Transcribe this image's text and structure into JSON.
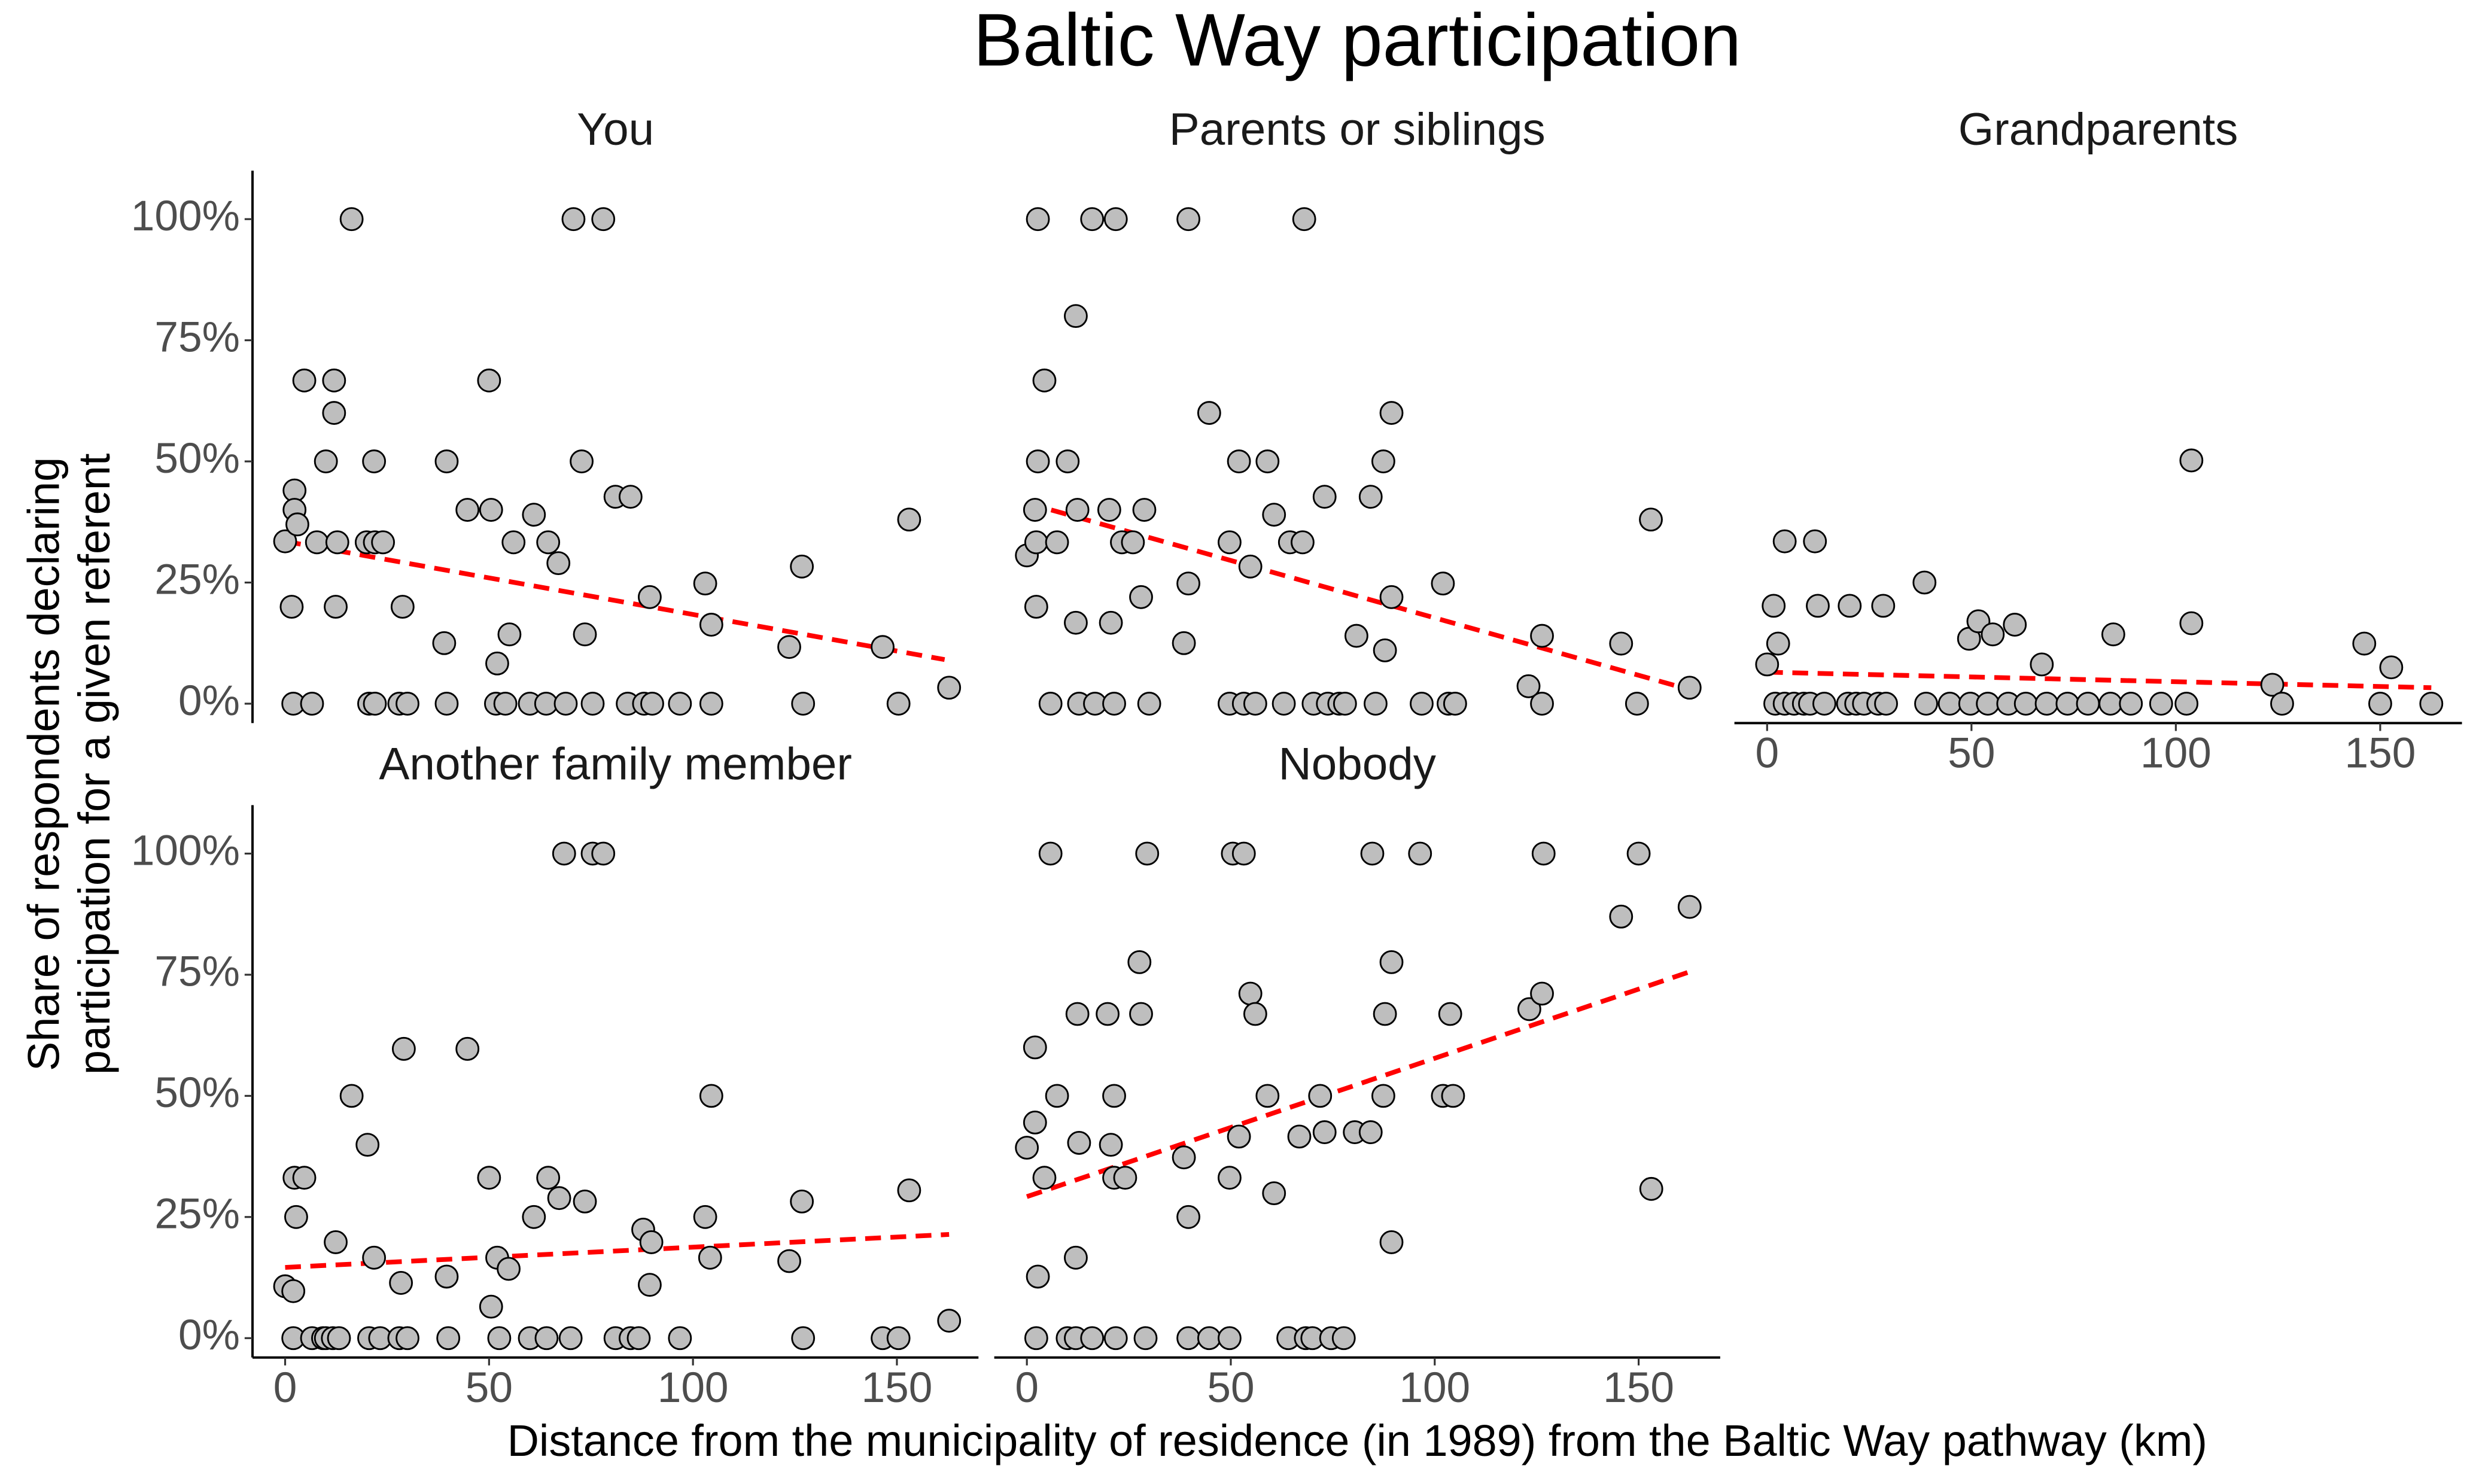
{
  "title": "Baltic Way participation",
  "x_label": "Distance from the municipality of residence (in 1989) from the Baltic Way pathway (km)",
  "y_label": [
    "Share of respondents declaring",
    "participation for a given referent"
  ],
  "chart_data": [
    {
      "type": "scatter",
      "title": "You",
      "color": "#bebebe",
      "x": [
        0,
        1.6,
        2,
        2.3,
        2.3,
        3,
        4.7,
        6.6,
        7.8,
        10,
        12,
        12,
        12.4,
        12.8,
        16.3,
        20,
        20.6,
        21.8,
        22,
        24,
        22,
        28,
        28.8,
        30,
        39.6,
        39.6,
        39,
        44.7,
        50,
        50.5,
        51.7,
        52,
        54,
        55,
        56,
        60,
        61,
        64,
        64.5,
        67,
        68.8,
        70.7,
        72.7,
        73.5,
        75.4,
        78,
        81,
        84,
        84.7,
        88,
        89.4,
        90,
        96.8,
        103,
        104.5,
        104.5,
        123.6,
        127,
        126.7,
        146.5,
        150.4,
        153,
        162.8
      ],
      "values": [
        33.5,
        20,
        0,
        44,
        40,
        37,
        66.7,
        0,
        33.3,
        50,
        66.7,
        60,
        20,
        33.3,
        100,
        33.3,
        0,
        50,
        33.3,
        33.3,
        0,
        0,
        20,
        0,
        50,
        0,
        12.5,
        40,
        66.7,
        40,
        0,
        8.3,
        0,
        14.3,
        33.3,
        0,
        39,
        0,
        33.3,
        29,
        0,
        100,
        50,
        14.3,
        0,
        100,
        42.7,
        0,
        42.7,
        0,
        22,
        0,
        0,
        24.8,
        0,
        16.3,
        11.7,
        0,
        28.3,
        11.7,
        0,
        38,
        3.3
      ],
      "trend": {
        "color": "#ff0000",
        "x": [
          0,
          161.7
        ],
        "values": [
          33.5,
          9.1
        ]
      },
      "xlim": [
        -8,
        170
      ],
      "ylim": [
        -4,
        110
      ],
      "yticks": [
        {
          "value": 0,
          "label": "0%"
        },
        {
          "value": 25,
          "label": "25%"
        },
        {
          "value": 50,
          "label": "50%"
        },
        {
          "value": 75,
          "label": "75%"
        },
        {
          "value": 100,
          "label": "100%"
        }
      ]
    },
    {
      "type": "scatter",
      "title": "Parents or siblings",
      "color": "#bebebe",
      "x": [
        0,
        2,
        2.3,
        2.7,
        2.3,
        2.7,
        4.3,
        5.8,
        7.4,
        10,
        12,
        12.4,
        12,
        12.8,
        16,
        16.7,
        20.2,
        20.6,
        21.8,
        21.4,
        23.3,
        26,
        28,
        28.8,
        30,
        38.5,
        39.6,
        39.6,
        44.7,
        49.7,
        49.7,
        52,
        53.2,
        54.8,
        56,
        59,
        60.6,
        63,
        64.5,
        67.6,
        68,
        70.3,
        73,
        73.8,
        76.6,
        78,
        80.8,
        84.3,
        85.5,
        87.4,
        87.8,
        89.4,
        89.4,
        96.8,
        102,
        103.4,
        105,
        123,
        126.3,
        126.3,
        145.7,
        149.6,
        153,
        162.5
      ],
      "values": [
        30.6,
        40,
        20,
        50,
        33.3,
        100,
        66.7,
        0,
        33.3,
        50,
        80,
        40,
        16.7,
        0,
        100,
        0,
        40,
        16.7,
        100,
        0,
        33.3,
        33.3,
        22,
        40,
        0,
        12.5,
        100,
        24.8,
        60,
        33.3,
        0,
        50,
        0,
        28.3,
        0,
        50,
        39,
        0,
        33.3,
        33.3,
        100,
        0,
        42.7,
        0,
        0,
        0,
        14,
        42.7,
        0,
        50,
        11,
        60,
        22,
        0,
        24.8,
        0,
        0,
        3.6,
        14,
        0,
        12.4,
        0,
        38,
        3.3
      ],
      "trend": {
        "color": "#ff0000",
        "x": [
          0,
          162.5
        ],
        "values": [
          41.4,
          2.9
        ]
      },
      "xlim": [
        -8,
        170
      ],
      "ylim": [
        -4,
        110
      ]
    },
    {
      "type": "scatter",
      "title": "Grandparents",
      "color": "#bebebe",
      "x": [
        0,
        1.6,
        2.7,
        2,
        4.3,
        4.3,
        6.6,
        9,
        10.5,
        11.7,
        12.4,
        14,
        20.2,
        19.8,
        21.8,
        23.7,
        27.2,
        28.4,
        29.1,
        38.5,
        38.9,
        44.7,
        49.4,
        49.7,
        51.7,
        54,
        55.2,
        59,
        60.6,
        63.3,
        67.2,
        68.4,
        73.5,
        78.5,
        84,
        84.7,
        89,
        96.4,
        102.6,
        103.8,
        103.8,
        123.6,
        126,
        146.1,
        150,
        152.7,
        162.5
      ],
      "values": [
        8.1,
        20.2,
        12.4,
        0,
        33.5,
        0,
        0,
        0,
        0,
        33.5,
        20.2,
        0,
        20.2,
        0,
        0,
        0,
        0,
        20.2,
        0,
        25,
        0,
        0,
        13.4,
        0,
        17,
        0,
        14.3,
        0,
        16.3,
        0,
        8.1,
        0,
        0,
        0,
        0,
        14.3,
        0,
        0,
        0,
        50.2,
        16.6,
        3.9,
        0,
        12.4,
        0,
        7.5,
        0
      ],
      "trend": {
        "color": "#ff0000",
        "x": [
          0,
          162.5
        ],
        "values": [
          6.5,
          3.3
        ]
      },
      "xlim": [
        -8,
        170
      ],
      "ylim": [
        -4,
        110
      ],
      "xticks": [
        0,
        50,
        100,
        150
      ]
    },
    {
      "type": "scatter",
      "title": "Another family member",
      "color": "#bebebe",
      "x": [
        0,
        2,
        2.3,
        2.7,
        2,
        4.7,
        6.6,
        9.3,
        10,
        11.7,
        12.4,
        13.2,
        16.3,
        20.2,
        20.6,
        21.8,
        23.3,
        28,
        29.1,
        28.4,
        30,
        39.6,
        40,
        44.7,
        50,
        50.5,
        52,
        52.5,
        54.8,
        60,
        61,
        64.1,
        64.5,
        67.2,
        68.4,
        70,
        73.5,
        75.4,
        78,
        81,
        84.7,
        87.8,
        89.8,
        86.7,
        89.4,
        96.8,
        103,
        104.5,
        104.2,
        123.6,
        126.7,
        127,
        146.5,
        150.4,
        153,
        162.8
      ],
      "values": [
        10.7,
        9.7,
        33.1,
        25,
        0,
        33.1,
        0,
        0,
        0,
        0,
        19.8,
        0,
        50,
        39.9,
        0,
        16.6,
        0,
        0,
        59.7,
        11.4,
        0,
        12.7,
        0,
        59.7,
        33.1,
        6.5,
        16.6,
        0,
        14.3,
        0,
        25,
        0,
        33.1,
        28.9,
        100,
        0,
        28.2,
        100,
        100,
        0,
        0,
        22.4,
        19.8,
        0,
        11,
        0,
        25,
        50,
        16.6,
        15.9,
        28.2,
        0,
        0,
        0,
        30.5,
        3.6
      ],
      "trend": {
        "color": "#ff0000",
        "x": [
          0,
          162.8
        ],
        "values": [
          14.6,
          21.4
        ]
      },
      "xlim": [
        -8,
        170
      ],
      "ylim": [
        -4,
        110
      ],
      "xticks": [
        0,
        50,
        100,
        150
      ],
      "yticks": [
        {
          "value": 0,
          "label": "0%"
        },
        {
          "value": 25,
          "label": "25%"
        },
        {
          "value": 50,
          "label": "50%"
        },
        {
          "value": 75,
          "label": "75%"
        },
        {
          "value": 100,
          "label": "100%"
        }
      ]
    },
    {
      "type": "scatter",
      "title": "Nobody",
      "color": "#bebebe",
      "x": [
        0,
        2,
        2,
        2.7,
        2.3,
        4.3,
        5.8,
        7.4,
        10,
        12,
        12.4,
        12,
        12.8,
        16,
        19.8,
        20.6,
        21.4,
        21.8,
        21.4,
        24.1,
        27.6,
        28,
        29.5,
        29.1,
        38.5,
        39.6,
        39.6,
        44.7,
        49.7,
        49.7,
        50.5,
        52,
        53.2,
        54.8,
        56,
        59,
        60.6,
        64.1,
        66.8,
        68.4,
        70,
        71.9,
        73,
        74.6,
        77.7,
        80.4,
        84.3,
        84.7,
        87.4,
        87.8,
        89.4,
        89.4,
        96.4,
        102,
        103.8,
        104.5,
        123.2,
        126.3,
        126.7,
        145.7,
        150,
        153.1,
        162.5
      ],
      "values": [
        39.3,
        60,
        44.5,
        12.7,
        0,
        33.1,
        100,
        50,
        0,
        0,
        66.9,
        16.6,
        40.3,
        0,
        66.9,
        39.9,
        50,
        0,
        33.1,
        33.1,
        77.6,
        66.9,
        100,
        0,
        37.3,
        25,
        0,
        0,
        33.1,
        0,
        100,
        41.6,
        100,
        71.1,
        66.9,
        50,
        29.9,
        0,
        41.6,
        0,
        0,
        50,
        42.5,
        0,
        0,
        42.5,
        42.5,
        100,
        50,
        66.9,
        77.6,
        19.8,
        100,
        50,
        66.9,
        50,
        67.9,
        71.1,
        100,
        87,
        100,
        30.8,
        89
      ],
      "trend": {
        "color": "#ff0000",
        "x": [
          0,
          162.5
        ],
        "values": [
          29.2,
          75.6
        ]
      },
      "xlim": [
        -8,
        170
      ],
      "ylim": [
        -4,
        110
      ],
      "xticks": [
        0,
        50,
        100,
        150
      ]
    }
  ]
}
